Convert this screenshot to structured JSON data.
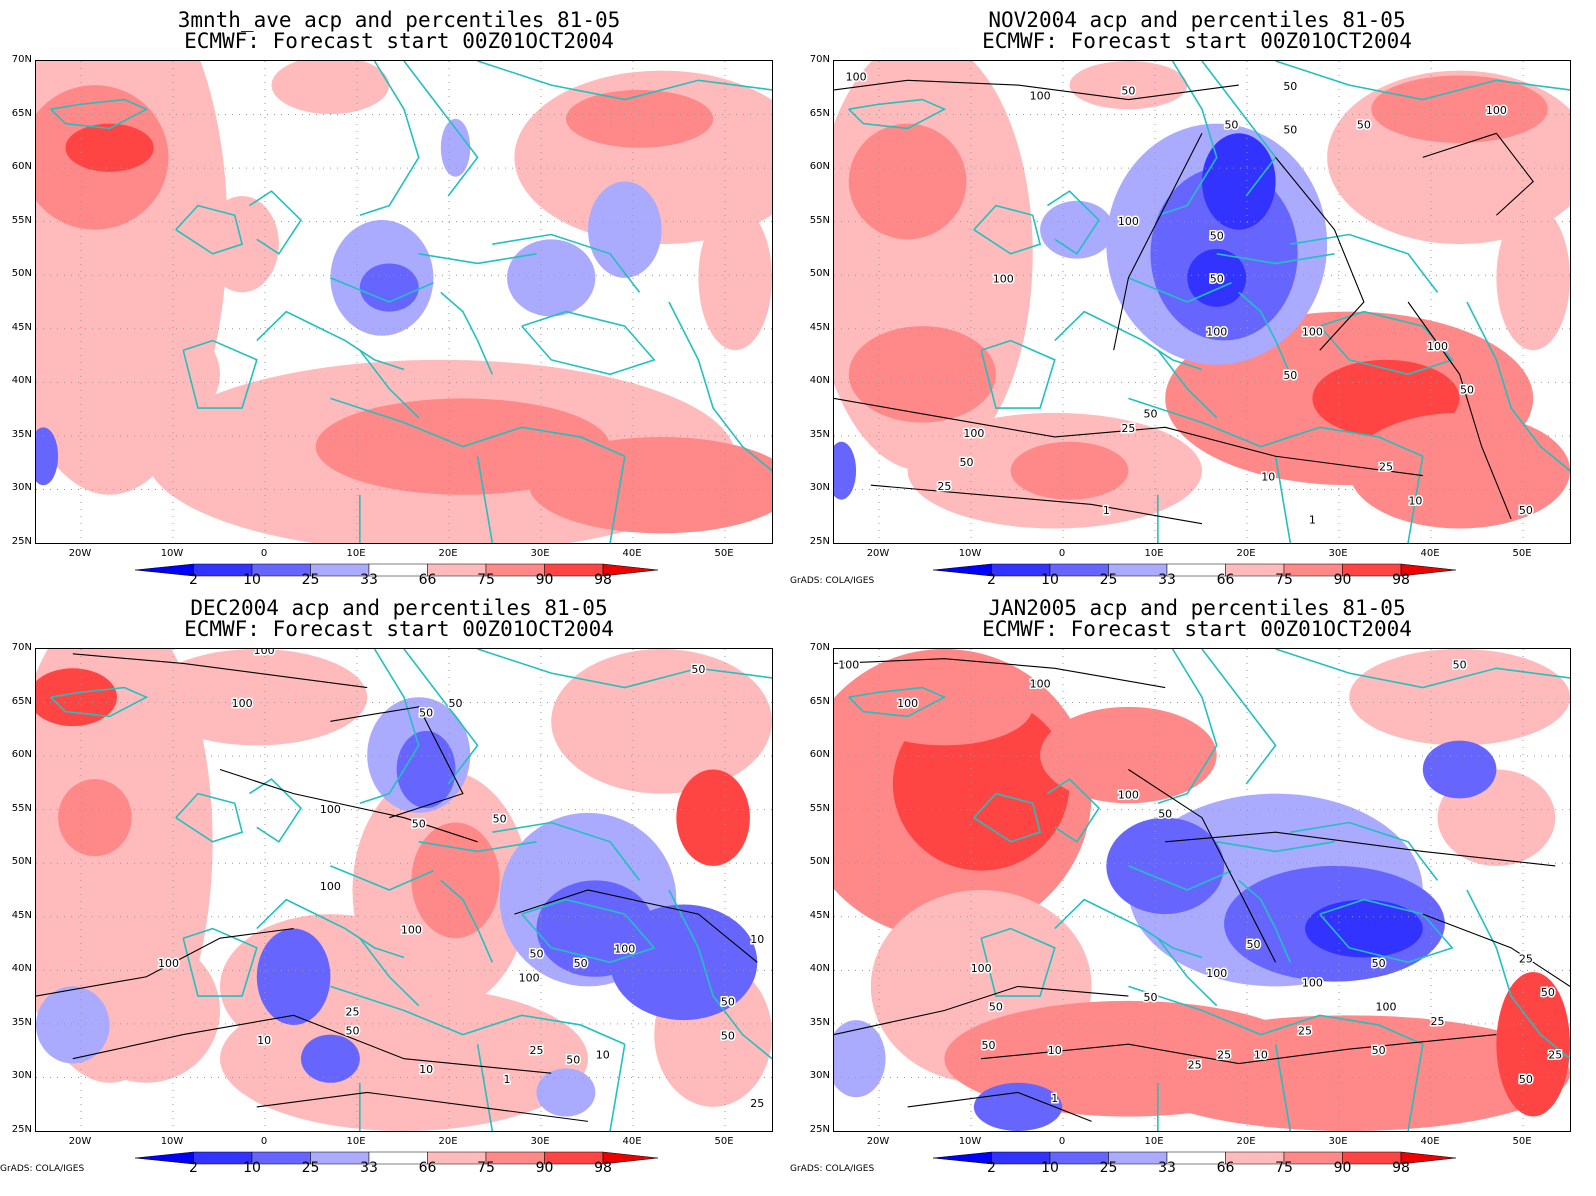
{
  "panels": [
    {
      "title1": "3mnth_ave acp and percentiles 81-05",
      "title2": "ECMWF: Forecast start 00Z01OCT2004",
      "credit": ""
    },
    {
      "title1": "NOV2004 acp and percentiles 81-05",
      "title2": "ECMWF: Forecast start 00Z01OCT2004",
      "credit": "GrADS: COLA/IGES"
    },
    {
      "title1": "DEC2004 acp and percentiles 81-05",
      "title2": "ECMWF: Forecast start 00Z01OCT2004",
      "credit": "GrADS: COLA/IGES"
    },
    {
      "title1": "JAN2005 acp and percentiles 81-05",
      "title2": "ECMWF: Forecast start 00Z01OCT2004",
      "credit": "GrADS: COLA/IGES"
    }
  ],
  "lat_labels": [
    "70N",
    "65N",
    "60N",
    "55N",
    "50N",
    "45N",
    "40N",
    "35N",
    "30N",
    "25N"
  ],
  "lon_labels": [
    "20W",
    "10W",
    "0",
    "10E",
    "20E",
    "30E",
    "40E",
    "50E"
  ],
  "colorbar": {
    "labels": [
      "2",
      "10",
      "25",
      "33",
      "66",
      "75",
      "90",
      "98"
    ],
    "colors": [
      "#0000ff",
      "#3333ff",
      "#6666ff",
      "#aaaaff",
      "#ffffff",
      "#ffbbbb",
      "#ff8888",
      "#ff4444",
      "#ee0000"
    ]
  },
  "contour_labels": {
    "panel2": [
      "100",
      "100",
      "50",
      "50",
      "50",
      "50",
      "100",
      "50",
      "100",
      "50",
      "100",
      "50",
      "100",
      "100",
      "50",
      "100",
      "50",
      "25",
      "50",
      "100",
      "10",
      "1",
      "25",
      "50",
      "10",
      "1",
      "25",
      "50"
    ],
    "panel3": [
      "100",
      "100",
      "50",
      "50",
      "50",
      "100",
      "50",
      "100",
      "50",
      "100",
      "100",
      "10",
      "50",
      "50",
      "25",
      "100",
      "50",
      "10",
      "10",
      "1",
      "50",
      "25",
      "50",
      "10",
      "25",
      "100",
      "50"
    ],
    "panel4": [
      "100",
      "100",
      "50",
      "100",
      "50",
      "100",
      "50",
      "50",
      "25",
      "100",
      "100",
      "50",
      "100",
      "50",
      "100",
      "25",
      "50",
      "10",
      "50",
      "25",
      "25",
      "10",
      "1",
      "50",
      "25",
      "25",
      "50"
    ]
  },
  "colors": {
    "coast": "#22c0c0",
    "contour": "#000000"
  }
}
